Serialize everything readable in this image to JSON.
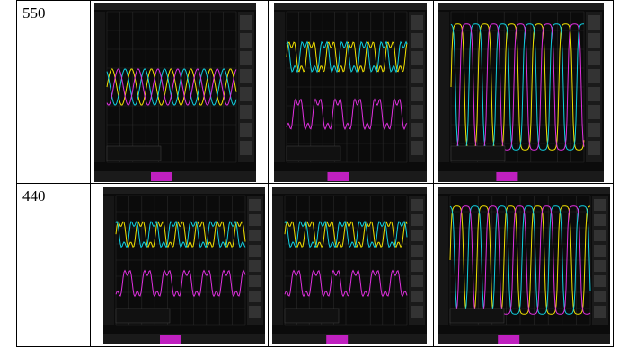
{
  "table": {
    "rows": [
      [
        "550"
      ],
      [
        "440"
      ]
    ]
  }
}
